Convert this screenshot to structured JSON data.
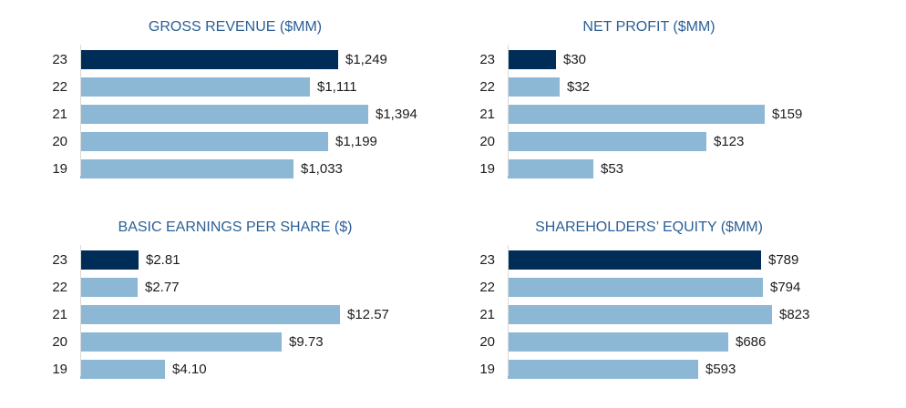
{
  "colors": {
    "page_bg": "#FFFFFF",
    "bar_current_year": "#002C58",
    "bar_prior_years": "#8CB8D6",
    "title_text": "#2B5F96",
    "label_text": "#1D1D1D",
    "axis_line_color": "#D9D9D9"
  },
  "chart_data": [
    {
      "id": "gross-revenue",
      "type": "bar",
      "orientation": "horizontal",
      "title": "GROSS REVENUE ($MM)",
      "categories": [
        "23",
        "22",
        "21",
        "20",
        "19"
      ],
      "values": [
        1249,
        1111,
        1394,
        1199,
        1033
      ],
      "value_labels": [
        "$1,249",
        "$1,111",
        "$1,394",
        "$1,199",
        "$1,033"
      ],
      "xlim": [
        0,
        1500
      ],
      "highlight_index": 0,
      "grid": false,
      "legend": false
    },
    {
      "id": "net-profit",
      "type": "bar",
      "orientation": "horizontal",
      "title": "NET PROFIT ($MM)",
      "categories": [
        "23",
        "22",
        "21",
        "20",
        "19"
      ],
      "values": [
        30,
        32,
        159,
        123,
        53
      ],
      "value_labels": [
        "$30",
        "$32",
        "$159",
        "$123",
        "$53"
      ],
      "xlim": [
        0,
        175
      ],
      "highlight_index": 0,
      "grid": false,
      "legend": false
    },
    {
      "id": "basic-earnings-per-share",
      "type": "bar",
      "orientation": "horizontal",
      "title": "BASIC EARNINGS PER SHARE ($)",
      "categories": [
        "23",
        "22",
        "21",
        "20",
        "19"
      ],
      "values": [
        2.81,
        2.77,
        12.57,
        9.73,
        4.1
      ],
      "value_labels": [
        "$2.81",
        "$2.77",
        "$12.57",
        "$9.73",
        "$4.10"
      ],
      "xlim": [
        0,
        15
      ],
      "highlight_index": 0,
      "grid": false,
      "legend": false
    },
    {
      "id": "shareholders-equity",
      "type": "bar",
      "orientation": "horizontal",
      "title": "SHAREHOLDERS’ EQUITY ($MM)",
      "categories": [
        "23",
        "22",
        "21",
        "20",
        "19"
      ],
      "values": [
        789,
        794,
        823,
        686,
        593
      ],
      "value_labels": [
        "$789",
        "$794",
        "$823",
        "$686",
        "$593"
      ],
      "xlim": [
        0,
        880
      ],
      "highlight_index": 0,
      "grid": false,
      "legend": false
    }
  ]
}
